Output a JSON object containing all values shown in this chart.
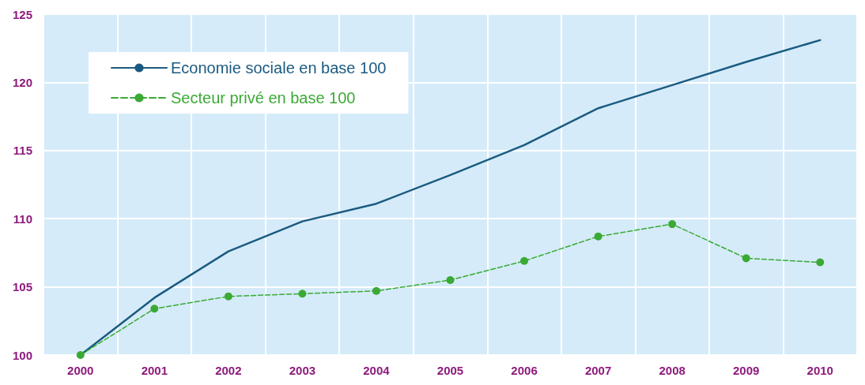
{
  "chart_data": {
    "type": "line",
    "categories": [
      "2000",
      "2001",
      "2002",
      "2003",
      "2004",
      "2005",
      "2006",
      "2007",
      "2008",
      "2009",
      "2010"
    ],
    "series": [
      {
        "name": "Economie sociale en base 100",
        "color": "#1b5a80",
        "marker": "none",
        "line_style": "solid",
        "values": [
          100,
          104.2,
          107.6,
          109.8,
          111.1,
          113.2,
          115.4,
          118.1,
          119.8,
          121.5,
          123.1
        ]
      },
      {
        "name": "Secteur privé en base 100",
        "color": "#3aaa35",
        "marker": "circle",
        "line_style": "dashed",
        "values": [
          100,
          103.4,
          104.3,
          104.5,
          104.7,
          105.5,
          106.9,
          108.7,
          109.6,
          107.1,
          106.8
        ]
      }
    ],
    "ylim": [
      100,
      125
    ],
    "yticks": [
      100,
      105,
      110,
      115,
      120,
      125
    ],
    "grid": true,
    "legend": "top left"
  }
}
